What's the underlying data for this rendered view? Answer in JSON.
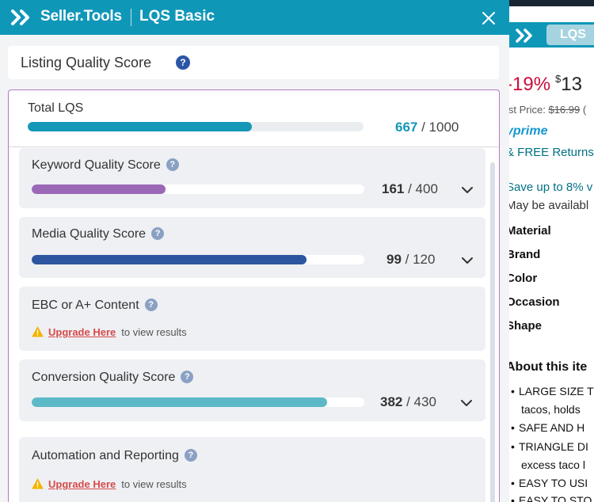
{
  "header": {
    "brand": "Seller.Tools",
    "product": "LQS Basic"
  },
  "title": {
    "label": "Listing Quality Score",
    "help": "?"
  },
  "total": {
    "label": "Total LQS",
    "value": "667",
    "max": "/ 1000",
    "fraction": 0.667,
    "color": "#1597b7"
  },
  "sections": [
    {
      "title": "Keyword Quality Score",
      "help": "?",
      "value": "161",
      "max": "/ 400",
      "fraction": 0.4025,
      "color": "#9b68b8"
    },
    {
      "title": "Media Quality Score",
      "help": "?",
      "value": "99",
      "max": "/ 120",
      "fraction": 0.825,
      "color": "#2c569f"
    },
    {
      "title": "EBC or A+ Content",
      "help": "?",
      "upgrade_link": "Upgrade Here",
      "upgrade_note": "to view results"
    },
    {
      "title": "Conversion Quality Score",
      "help": "?",
      "value": "382",
      "max": "/ 430",
      "fraction": 0.888,
      "color": "#5cb9c7"
    },
    {
      "title": "Automation and Reporting",
      "help": "?",
      "upgrade_link": "Upgrade Here",
      "upgrade_note": "to view results"
    }
  ],
  "amazon": {
    "lqs_badge": "LQS",
    "discount": "-19%",
    "currency": "$",
    "price": "13",
    "list_price_label": "ist Price:",
    "list_price": "$16.99",
    "list_price_tail": "(",
    "prime": "prime",
    "prime_prefix": "y",
    "free_returns": "& FREE Returns",
    "save": "Save up to 8% v",
    "availability": "May be availabl",
    "attributes": [
      "Material",
      "Brand",
      "Color",
      "Occasion",
      "Shape"
    ],
    "about": "About this ite",
    "bullets": [
      "LARGE SIZE T",
      "SAFE AND H",
      "TRIANGLE DI",
      "EASY TO USI",
      "EASY TO STO"
    ],
    "bullet_conts": [
      "tacos, holds",
      "excess taco l"
    ]
  },
  "colors": {
    "header": "#0f97b8",
    "accent": "#1597b7",
    "help_icon": "#2b56a6",
    "upgrade": "#d94a4a",
    "warning": "#f5b400"
  }
}
